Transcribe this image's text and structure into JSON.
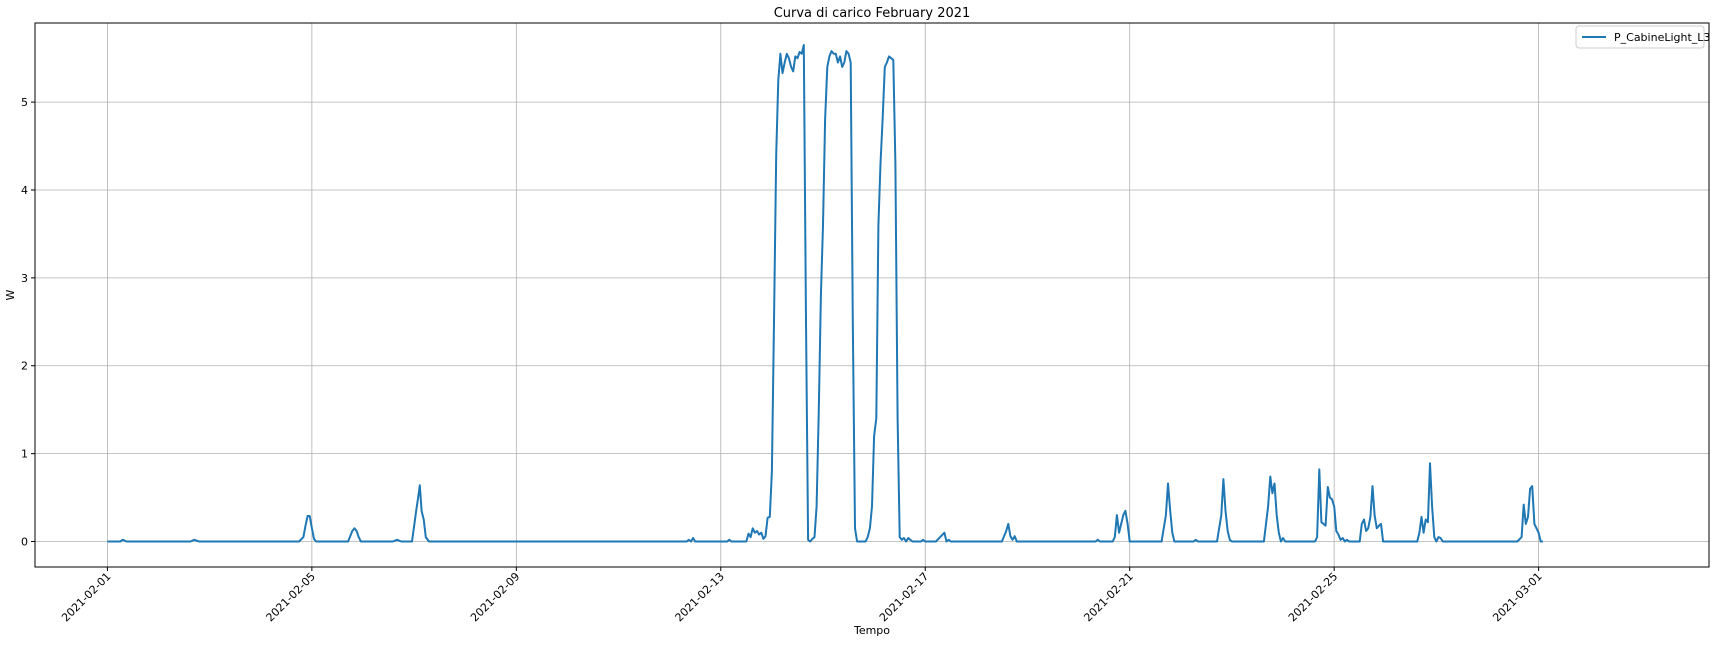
{
  "chart_data": {
    "type": "line",
    "title": "Curva di carico February 2021",
    "xlabel": "Tempo",
    "ylabel": "W",
    "xlim": [
      "2021-01-30T14:00",
      "2021-03-04T08:00"
    ],
    "ylim": [
      -0.29,
      5.9
    ],
    "grid": true,
    "legend_position": "top-right",
    "x_ticks": [
      "2021-02-01",
      "2021-02-05",
      "2021-02-09",
      "2021-02-13",
      "2021-02-17",
      "2021-02-21",
      "2021-02-25",
      "2021-03-01"
    ],
    "y_ticks": [
      0,
      1,
      2,
      3,
      4,
      5
    ],
    "colors": {
      "series": "#1f77b4",
      "grid": "#b0b0b0"
    },
    "series": [
      {
        "name": "P_CabineLight_L3",
        "points": [
          [
            "2021-02-01T00:00",
            0
          ],
          [
            "2021-02-01T06:00",
            0
          ],
          [
            "2021-02-01T07:12",
            0.02
          ],
          [
            "2021-02-01T09:00",
            0
          ],
          [
            "2021-02-02T15:00",
            0
          ],
          [
            "2021-02-02T16:48",
            0.02
          ],
          [
            "2021-02-02T19:00",
            0
          ],
          [
            "2021-02-04T18:00",
            0
          ],
          [
            "2021-02-04T20:00",
            0.05
          ],
          [
            "2021-02-04T21:00",
            0.18
          ],
          [
            "2021-02-04T22:00",
            0.29
          ],
          [
            "2021-02-04T23:00",
            0.29
          ],
          [
            "2021-02-05T00:00",
            0.15
          ],
          [
            "2021-02-05T01:00",
            0.03
          ],
          [
            "2021-02-05T02:00",
            0
          ],
          [
            "2021-02-05T17:00",
            0
          ],
          [
            "2021-02-05T19:00",
            0.12
          ],
          [
            "2021-02-05T20:00",
            0.15
          ],
          [
            "2021-02-05T21:00",
            0.12
          ],
          [
            "2021-02-05T22:00",
            0.05
          ],
          [
            "2021-02-05T23:00",
            0
          ],
          [
            "2021-02-06T14:00",
            0
          ],
          [
            "2021-02-06T16:00",
            0.02
          ],
          [
            "2021-02-06T18:00",
            0
          ],
          [
            "2021-02-06T23:00",
            0
          ],
          [
            "2021-02-07T01:00",
            0.35
          ],
          [
            "2021-02-07T02:00",
            0.52
          ],
          [
            "2021-02-07T02:40",
            0.64
          ],
          [
            "2021-02-07T03:30",
            0.35
          ],
          [
            "2021-02-07T04:30",
            0.25
          ],
          [
            "2021-02-07T05:30",
            0.05
          ],
          [
            "2021-02-07T07:00",
            0
          ],
          [
            "2021-02-12T08:00",
            0
          ],
          [
            "2021-02-12T09:00",
            0.02
          ],
          [
            "2021-02-12T10:00",
            0
          ],
          [
            "2021-02-12T11:00",
            0.04
          ],
          [
            "2021-02-12T12:00",
            0
          ],
          [
            "2021-02-13T03:00",
            0
          ],
          [
            "2021-02-13T04:00",
            0.02
          ],
          [
            "2021-02-13T05:00",
            0
          ],
          [
            "2021-02-13T12:00",
            0
          ],
          [
            "2021-02-13T13:00",
            0.09
          ],
          [
            "2021-02-13T14:00",
            0.05
          ],
          [
            "2021-02-13T15:00",
            0.15
          ],
          [
            "2021-02-13T16:00",
            0.1
          ],
          [
            "2021-02-13T17:00",
            0.12
          ],
          [
            "2021-02-13T18:00",
            0.08
          ],
          [
            "2021-02-13T19:00",
            0.1
          ],
          [
            "2021-02-13T20:00",
            0.03
          ],
          [
            "2021-02-13T21:00",
            0.06
          ],
          [
            "2021-02-13T22:00",
            0.27
          ],
          [
            "2021-02-13T23:00",
            0.28
          ],
          [
            "2021-02-14T00:00",
            0.8
          ],
          [
            "2021-02-14T01:00",
            2.5
          ],
          [
            "2021-02-14T02:00",
            4.4
          ],
          [
            "2021-02-14T03:00",
            5.25
          ],
          [
            "2021-02-14T04:00",
            5.55
          ],
          [
            "2021-02-14T05:00",
            5.33
          ],
          [
            "2021-02-14T06:00",
            5.45
          ],
          [
            "2021-02-14T07:00",
            5.55
          ],
          [
            "2021-02-14T08:00",
            5.5
          ],
          [
            "2021-02-14T09:00",
            5.4
          ],
          [
            "2021-02-14T10:00",
            5.35
          ],
          [
            "2021-02-14T11:00",
            5.52
          ],
          [
            "2021-02-14T12:00",
            5.5
          ],
          [
            "2021-02-14T13:00",
            5.57
          ],
          [
            "2021-02-14T14:00",
            5.55
          ],
          [
            "2021-02-14T15:00",
            5.65
          ],
          [
            "2021-02-14T16:00",
            2.5
          ],
          [
            "2021-02-14T17:00",
            0.02
          ],
          [
            "2021-02-14T18:00",
            0
          ],
          [
            "2021-02-14T19:00",
            0.03
          ],
          [
            "2021-02-14T20:00",
            0.05
          ],
          [
            "2021-02-14T21:00",
            0.4
          ],
          [
            "2021-02-14T22:00",
            1.5
          ],
          [
            "2021-02-14T23:00",
            2.8
          ],
          [
            "2021-02-15T00:00",
            3.6
          ],
          [
            "2021-02-15T01:00",
            4.8
          ],
          [
            "2021-02-15T02:00",
            5.4
          ],
          [
            "2021-02-15T03:00",
            5.52
          ],
          [
            "2021-02-15T04:00",
            5.58
          ],
          [
            "2021-02-15T05:00",
            5.55
          ],
          [
            "2021-02-15T06:00",
            5.55
          ],
          [
            "2021-02-15T07:00",
            5.45
          ],
          [
            "2021-02-15T08:00",
            5.52
          ],
          [
            "2021-02-15T09:00",
            5.4
          ],
          [
            "2021-02-15T10:00",
            5.45
          ],
          [
            "2021-02-15T11:00",
            5.58
          ],
          [
            "2021-02-15T12:00",
            5.55
          ],
          [
            "2021-02-15T13:00",
            5.45
          ],
          [
            "2021-02-15T14:00",
            2.5
          ],
          [
            "2021-02-15T15:00",
            0.15
          ],
          [
            "2021-02-15T16:00",
            0
          ],
          [
            "2021-02-15T20:00",
            0
          ],
          [
            "2021-02-15T21:00",
            0.05
          ],
          [
            "2021-02-15T22:00",
            0.15
          ],
          [
            "2021-02-15T23:00",
            0.4
          ],
          [
            "2021-02-16T00:00",
            1.2
          ],
          [
            "2021-02-16T01:00",
            1.4
          ],
          [
            "2021-02-16T02:00",
            3.6
          ],
          [
            "2021-02-16T03:00",
            4.3
          ],
          [
            "2021-02-16T04:00",
            4.8
          ],
          [
            "2021-02-16T05:00",
            5.4
          ],
          [
            "2021-02-16T06:00",
            5.45
          ],
          [
            "2021-02-16T07:00",
            5.52
          ],
          [
            "2021-02-16T08:00",
            5.5
          ],
          [
            "2021-02-16T09:00",
            5.48
          ],
          [
            "2021-02-16T10:00",
            4.3
          ],
          [
            "2021-02-16T11:00",
            1.4
          ],
          [
            "2021-02-16T12:00",
            0.05
          ],
          [
            "2021-02-16T13:00",
            0.02
          ],
          [
            "2021-02-16T14:00",
            0.04
          ],
          [
            "2021-02-16T15:00",
            0
          ],
          [
            "2021-02-16T16:00",
            0.04
          ],
          [
            "2021-02-16T17:00",
            0.02
          ],
          [
            "2021-02-16T18:00",
            0
          ],
          [
            "2021-02-16T22:00",
            0
          ],
          [
            "2021-02-16T23:00",
            0.02
          ],
          [
            "2021-02-17T00:00",
            0
          ],
          [
            "2021-02-17T05:00",
            0
          ],
          [
            "2021-02-17T07:00",
            0.05
          ],
          [
            "2021-02-17T09:00",
            0.1
          ],
          [
            "2021-02-17T10:00",
            0
          ],
          [
            "2021-02-17T11:00",
            0.02
          ],
          [
            "2021-02-17T12:00",
            0
          ],
          [
            "2021-02-18T12:00",
            0
          ],
          [
            "2021-02-18T14:00",
            0.12
          ],
          [
            "2021-02-18T15:00",
            0.2
          ],
          [
            "2021-02-18T16:00",
            0.06
          ],
          [
            "2021-02-18T17:00",
            0.02
          ],
          [
            "2021-02-18T18:00",
            0.06
          ],
          [
            "2021-02-18T19:00",
            0
          ],
          [
            "2021-02-20T08:00",
            0
          ],
          [
            "2021-02-20T09:00",
            0.02
          ],
          [
            "2021-02-20T10:00",
            0
          ],
          [
            "2021-02-20T16:00",
            0
          ],
          [
            "2021-02-20T17:00",
            0.05
          ],
          [
            "2021-02-20T18:00",
            0.3
          ],
          [
            "2021-02-20T19:00",
            0.1
          ],
          [
            "2021-02-20T20:00",
            0.2
          ],
          [
            "2021-02-20T21:00",
            0.3
          ],
          [
            "2021-02-20T22:00",
            0.35
          ],
          [
            "2021-02-20T23:00",
            0.2
          ],
          [
            "2021-02-21T00:00",
            0
          ],
          [
            "2021-02-21T15:00",
            0
          ],
          [
            "2021-02-21T17:00",
            0.3
          ],
          [
            "2021-02-21T18:00",
            0.66
          ],
          [
            "2021-02-21T19:00",
            0.35
          ],
          [
            "2021-02-21T20:00",
            0.1
          ],
          [
            "2021-02-21T21:00",
            0
          ],
          [
            "2021-02-22T06:00",
            0
          ],
          [
            "2021-02-22T07:00",
            0.02
          ],
          [
            "2021-02-22T08:00",
            0
          ],
          [
            "2021-02-22T17:00",
            0
          ],
          [
            "2021-02-22T19:00",
            0.3
          ],
          [
            "2021-02-22T20:00",
            0.71
          ],
          [
            "2021-02-22T21:00",
            0.35
          ],
          [
            "2021-02-22T22:00",
            0.12
          ],
          [
            "2021-02-22T23:00",
            0.02
          ],
          [
            "2021-02-23T00:00",
            0
          ],
          [
            "2021-02-23T15:00",
            0
          ],
          [
            "2021-02-23T17:00",
            0.4
          ],
          [
            "2021-02-23T18:00",
            0.74
          ],
          [
            "2021-02-23T19:00",
            0.55
          ],
          [
            "2021-02-23T20:00",
            0.66
          ],
          [
            "2021-02-23T21:00",
            0.3
          ],
          [
            "2021-02-23T22:00",
            0.1
          ],
          [
            "2021-02-23T23:00",
            0
          ],
          [
            "2021-02-24T00:00",
            0.04
          ],
          [
            "2021-02-24T01:00",
            0
          ],
          [
            "2021-02-24T15:00",
            0
          ],
          [
            "2021-02-24T16:00",
            0.05
          ],
          [
            "2021-02-24T17:00",
            0.82
          ],
          [
            "2021-02-24T18:00",
            0.22
          ],
          [
            "2021-02-24T19:00",
            0.2
          ],
          [
            "2021-02-24T20:00",
            0.18
          ],
          [
            "2021-02-24T21:00",
            0.62
          ],
          [
            "2021-02-24T22:00",
            0.5
          ],
          [
            "2021-02-24T23:00",
            0.48
          ],
          [
            "2021-02-25T00:00",
            0.4
          ],
          [
            "2021-02-25T01:00",
            0.12
          ],
          [
            "2021-02-25T02:00",
            0.08
          ],
          [
            "2021-02-25T03:00",
            0.02
          ],
          [
            "2021-02-25T04:00",
            0.04
          ],
          [
            "2021-02-25T05:00",
            0
          ],
          [
            "2021-02-25T06:00",
            0.02
          ],
          [
            "2021-02-25T07:00",
            0
          ],
          [
            "2021-02-25T12:00",
            0
          ],
          [
            "2021-02-25T13:00",
            0.2
          ],
          [
            "2021-02-25T14:00",
            0.25
          ],
          [
            "2021-02-25T15:00",
            0.12
          ],
          [
            "2021-02-25T16:00",
            0.15
          ],
          [
            "2021-02-25T17:00",
            0.28
          ],
          [
            "2021-02-25T18:00",
            0.63
          ],
          [
            "2021-02-25T19:00",
            0.3
          ],
          [
            "2021-02-25T20:00",
            0.15
          ],
          [
            "2021-02-25T21:00",
            0.18
          ],
          [
            "2021-02-25T22:00",
            0.2
          ],
          [
            "2021-02-25T23:00",
            0
          ],
          [
            "2021-02-26T15:00",
            0
          ],
          [
            "2021-02-26T16:00",
            0.1
          ],
          [
            "2021-02-26T17:00",
            0.28
          ],
          [
            "2021-02-26T18:00",
            0.1
          ],
          [
            "2021-02-26T19:00",
            0.25
          ],
          [
            "2021-02-26T20:00",
            0.22
          ],
          [
            "2021-02-26T21:00",
            0.89
          ],
          [
            "2021-02-26T22:00",
            0.4
          ],
          [
            "2021-02-26T23:00",
            0.05
          ],
          [
            "2021-02-27T00:00",
            0
          ],
          [
            "2021-02-27T01:00",
            0.05
          ],
          [
            "2021-02-27T02:00",
            0.04
          ],
          [
            "2021-02-27T03:00",
            0
          ],
          [
            "2021-02-28T14:00",
            0
          ],
          [
            "2021-02-28T16:00",
            0.05
          ],
          [
            "2021-02-28T17:00",
            0.42
          ],
          [
            "2021-02-28T18:00",
            0.2
          ],
          [
            "2021-02-28T19:00",
            0.28
          ],
          [
            "2021-02-28T20:00",
            0.6
          ],
          [
            "2021-02-28T21:00",
            0.63
          ],
          [
            "2021-02-28T22:00",
            0.2
          ],
          [
            "2021-02-28T23:00",
            0.15
          ],
          [
            "2021-03-01T00:00",
            0.1
          ],
          [
            "2021-03-01T01:00",
            0
          ],
          [
            "2021-03-01T02:00",
            0
          ]
        ]
      }
    ]
  }
}
